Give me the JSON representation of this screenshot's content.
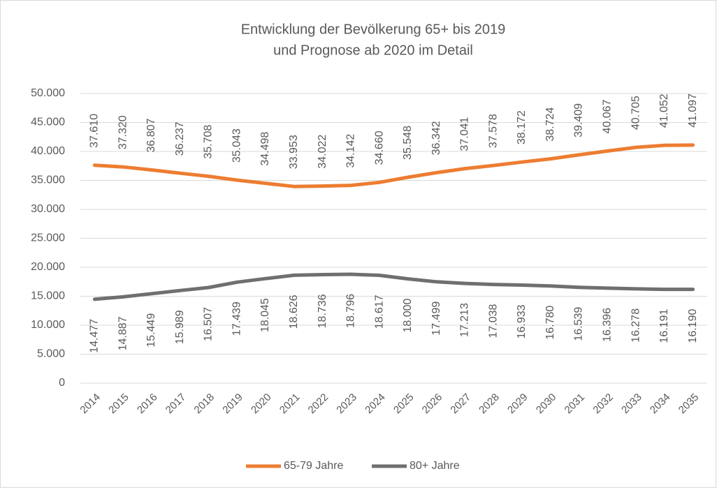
{
  "chart_data": {
    "type": "line",
    "title": [
      "Entwicklung der Bevölkerung 65+ bis 2019",
      "und Prognose ab 2020 im Detail"
    ],
    "categories": [
      "2014",
      "2015",
      "2016",
      "2017",
      "2018",
      "2019",
      "2020",
      "2021",
      "2022",
      "2023",
      "2024",
      "2025",
      "2026",
      "2027",
      "2028",
      "2029",
      "2030",
      "2031",
      "2032",
      "2033",
      "2034",
      "2035"
    ],
    "series": [
      {
        "name": "65-79 Jahre",
        "color": "#ed7d31",
        "label_position": "above",
        "values": [
          37610,
          37320,
          36807,
          36237,
          35708,
          35043,
          34498,
          33953,
          34022,
          34142,
          34660,
          35548,
          36342,
          37041,
          37578,
          38172,
          38724,
          39409,
          40067,
          40705,
          41052,
          41097
        ],
        "value_labels": [
          "37.610",
          "37.320",
          "36.807",
          "36.237",
          "35.708",
          "35.043",
          "34.498",
          "33.953",
          "34.022",
          "34.142",
          "34.660",
          "35.548",
          "36.342",
          "37.041",
          "37.578",
          "38.172",
          "38.724",
          "39.409",
          "40.067",
          "40.705",
          "41.052",
          "41.097"
        ]
      },
      {
        "name": "80+ Jahre",
        "color": "#6f6f6f",
        "label_position": "below",
        "values": [
          14477,
          14887,
          15449,
          15989,
          16507,
          17439,
          18045,
          18626,
          18736,
          18796,
          18617,
          18000,
          17499,
          17213,
          17038,
          16933,
          16780,
          16539,
          16396,
          16278,
          16191,
          16190
        ],
        "value_labels": [
          "14.477",
          "14.887",
          "15.449",
          "15.989",
          "16.507",
          "17.439",
          "18.045",
          "18.626",
          "18.736",
          "18.796",
          "18.617",
          "18.000",
          "17.499",
          "17.213",
          "17.038",
          "16.933",
          "16.780",
          "16.539",
          "16.396",
          "16.278",
          "16.191",
          "16.190"
        ]
      }
    ],
    "ylim": [
      0,
      50000
    ],
    "yticks": [
      0,
      {
        "value": 5000,
        "label": "5.000"
      },
      {
        "value": 10000,
        "label": "10.000"
      },
      {
        "value": 15000,
        "label": "15.000"
      },
      {
        "value": 20000,
        "label": "20.000"
      },
      {
        "value": 25000,
        "label": "25.000"
      },
      {
        "value": 30000,
        "label": "30.000"
      },
      {
        "value": 35000,
        "label": "35.000"
      },
      {
        "value": 40000,
        "label": "40.000"
      },
      {
        "value": 45000,
        "label": "45.000"
      },
      {
        "value": 50000,
        "label": "50.000"
      }
    ],
    "grid": true,
    "legend": "bottom"
  }
}
